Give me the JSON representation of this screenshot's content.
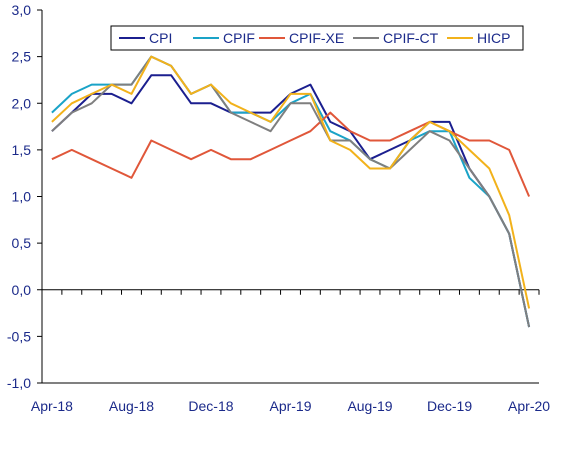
{
  "chart_data": {
    "type": "line",
    "title": "",
    "xlabel": "",
    "ylabel": "",
    "ylim": [
      -1.0,
      3.0
    ],
    "y_ticks": [
      "3,0",
      "2,5",
      "2,0",
      "1,5",
      "1,0",
      "0,5",
      "0,0",
      "-0,5",
      "-1,0"
    ],
    "x_tick_labels": [
      "Apr-18",
      "Aug-18",
      "Dec-18",
      "Apr-19",
      "Aug-19",
      "Dec-19",
      "Apr-20"
    ],
    "categories": [
      "Apr-18",
      "May-18",
      "Jun-18",
      "Jul-18",
      "Aug-18",
      "Sep-18",
      "Oct-18",
      "Nov-18",
      "Dec-18",
      "Jan-19",
      "Feb-19",
      "Mar-19",
      "Apr-19",
      "May-19",
      "Jun-19",
      "Jul-19",
      "Aug-19",
      "Sep-19",
      "Oct-19",
      "Nov-19",
      "Dec-19",
      "Jan-20",
      "Feb-20",
      "Mar-20",
      "Apr-20"
    ],
    "grid": false,
    "legend_position": "top-right",
    "series": [
      {
        "name": "CPI",
        "color": "#1b1f8f",
        "values": [
          1.7,
          1.9,
          2.1,
          2.1,
          2.0,
          2.3,
          2.3,
          2.0,
          2.0,
          1.9,
          1.9,
          1.9,
          2.1,
          2.2,
          1.8,
          1.7,
          1.4,
          1.5,
          1.6,
          1.8,
          1.8,
          1.3,
          1.0,
          0.6,
          -0.4
        ]
      },
      {
        "name": "CPIF",
        "color": "#1aa3c7",
        "values": [
          1.9,
          2.1,
          2.2,
          2.2,
          2.2,
          2.5,
          2.4,
          2.1,
          2.2,
          1.9,
          1.9,
          1.8,
          2.0,
          2.1,
          1.7,
          1.6,
          1.4,
          1.3,
          1.6,
          1.7,
          1.7,
          1.2,
          1.0,
          0.6,
          -0.4
        ]
      },
      {
        "name": "CPIF-XE",
        "color": "#e0573a",
        "values": [
          1.4,
          1.5,
          1.4,
          1.3,
          1.2,
          1.6,
          1.5,
          1.4,
          1.5,
          1.4,
          1.4,
          1.5,
          1.6,
          1.7,
          1.9,
          1.7,
          1.6,
          1.6,
          1.7,
          1.8,
          1.7,
          1.6,
          1.6,
          1.5,
          1.0
        ]
      },
      {
        "name": "CPIF-CT",
        "color": "#7f7f7f",
        "values": [
          1.7,
          1.9,
          2.0,
          2.2,
          2.2,
          2.5,
          2.4,
          2.1,
          2.2,
          1.9,
          1.8,
          1.7,
          2.0,
          2.0,
          1.6,
          1.6,
          1.4,
          1.3,
          1.5,
          1.7,
          1.6,
          1.3,
          1.0,
          0.6,
          -0.4
        ]
      },
      {
        "name": "HICP",
        "color": "#f2b21b",
        "values": [
          1.8,
          2.0,
          2.1,
          2.2,
          2.1,
          2.5,
          2.4,
          2.1,
          2.2,
          2.0,
          1.9,
          1.8,
          2.1,
          2.1,
          1.6,
          1.5,
          1.3,
          1.3,
          1.6,
          1.8,
          1.7,
          1.5,
          1.3,
          0.8,
          -0.2
        ]
      }
    ]
  }
}
